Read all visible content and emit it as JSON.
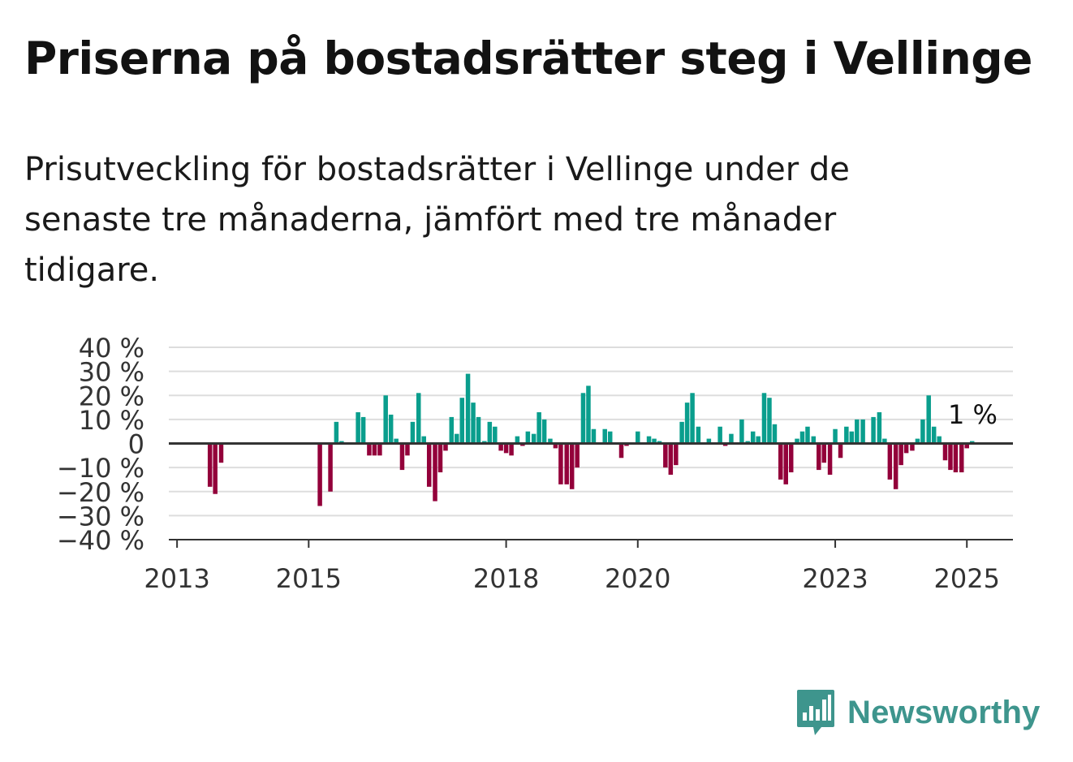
{
  "title": "Priserna på bostadsrätter steg i Vellinge",
  "subtitle": "Prisutveckling för bostadsrätter i Vellinge under de senaste tre månaderna, jämfört med tre månader tidigare.",
  "brand": {
    "name": "Newsworthy",
    "logo_icon": "bar-chart-speech-bubble-icon"
  },
  "colors": {
    "positive": "#0a9e8d",
    "negative": "#93003a",
    "brand": "#3e958d",
    "grid": "#dddddd",
    "axis": "#333333"
  },
  "chart_data": {
    "type": "bar",
    "title": "",
    "xlabel": "",
    "ylabel": "",
    "ylim": [
      -40,
      40
    ],
    "yticks": [
      40,
      30,
      20,
      10,
      0,
      -10,
      -20,
      -30,
      -40
    ],
    "ytick_labels": [
      "40 %",
      "30 %",
      "20 %",
      "10 %",
      "0",
      "−10 %",
      "−20 %",
      "−30 %",
      "−40 %"
    ],
    "xticks": [
      2013,
      2015,
      2018,
      2020,
      2023,
      2025
    ],
    "xlim": [
      2012.875,
      2025.7
    ],
    "grid": true,
    "annotation": {
      "text": "1 %",
      "x": 2025.04,
      "y": 1
    },
    "x": [
      2013.5,
      2013.58,
      2013.67,
      2015.17,
      2015.33,
      2015.42,
      2015.5,
      2015.58,
      2015.75,
      2015.83,
      2015.92,
      2016.0,
      2016.08,
      2016.17,
      2016.25,
      2016.33,
      2016.42,
      2016.5,
      2016.58,
      2016.67,
      2016.75,
      2016.83,
      2016.92,
      2017.0,
      2017.08,
      2017.17,
      2017.25,
      2017.33,
      2017.42,
      2017.5,
      2017.58,
      2017.67,
      2017.75,
      2017.83,
      2017.92,
      2018.0,
      2018.08,
      2018.17,
      2018.25,
      2018.33,
      2018.42,
      2018.5,
      2018.58,
      2018.67,
      2018.75,
      2018.83,
      2018.92,
      2019.0,
      2019.08,
      2019.17,
      2019.25,
      2019.33,
      2019.42,
      2019.5,
      2019.58,
      2019.67,
      2019.75,
      2019.83,
      2020.0,
      2020.08,
      2020.17,
      2020.25,
      2020.33,
      2020.42,
      2020.5,
      2020.58,
      2020.67,
      2020.75,
      2020.83,
      2020.92,
      2021.0,
      2021.08,
      2021.17,
      2021.25,
      2021.33,
      2021.42,
      2021.5,
      2021.58,
      2021.67,
      2021.75,
      2021.83,
      2021.92,
      2022.0,
      2022.08,
      2022.17,
      2022.25,
      2022.33,
      2022.42,
      2022.5,
      2022.58,
      2022.67,
      2022.75,
      2022.83,
      2022.92,
      2023.0,
      2023.08,
      2023.17,
      2023.25,
      2023.33,
      2023.42,
      2023.5,
      2023.58,
      2023.67,
      2023.75,
      2023.83,
      2023.92,
      2024.0,
      2024.08,
      2024.17,
      2024.25,
      2024.33,
      2024.42,
      2024.5,
      2024.58,
      2024.67,
      2024.75,
      2024.83,
      2024.92,
      2025.0,
      2025.08
    ],
    "series": [
      {
        "values": [
          -18,
          -21,
          -8,
          -26,
          -20,
          9,
          1,
          0,
          13,
          11,
          -5,
          -5,
          -5,
          20,
          12,
          2,
          -11,
          -5,
          9,
          21,
          3,
          -18,
          -24,
          -12,
          -3,
          11,
          4,
          19,
          29,
          17,
          11,
          1,
          9,
          7,
          -3,
          -4,
          -5,
          3,
          -1,
          5,
          4,
          13,
          10,
          2,
          -2,
          -17,
          -17,
          -19,
          -10,
          21,
          24,
          6,
          0,
          6,
          5,
          0,
          -6,
          -1,
          5,
          0,
          3,
          2,
          1,
          -10,
          -13,
          -9,
          9,
          17,
          21,
          7,
          0,
          2,
          0,
          7,
          -1,
          4,
          0,
          10,
          1,
          5,
          3,
          21,
          19,
          8,
          -15,
          -17,
          -12,
          2,
          5,
          7,
          3,
          -11,
          -8,
          -13,
          6,
          -6,
          7,
          5,
          10,
          10,
          0,
          11,
          13,
          2,
          -15,
          -19,
          -9,
          -4,
          -3,
          2,
          10,
          20,
          7,
          3,
          -7,
          -11,
          -12,
          -12,
          -2,
          1
        ]
      }
    ]
  }
}
